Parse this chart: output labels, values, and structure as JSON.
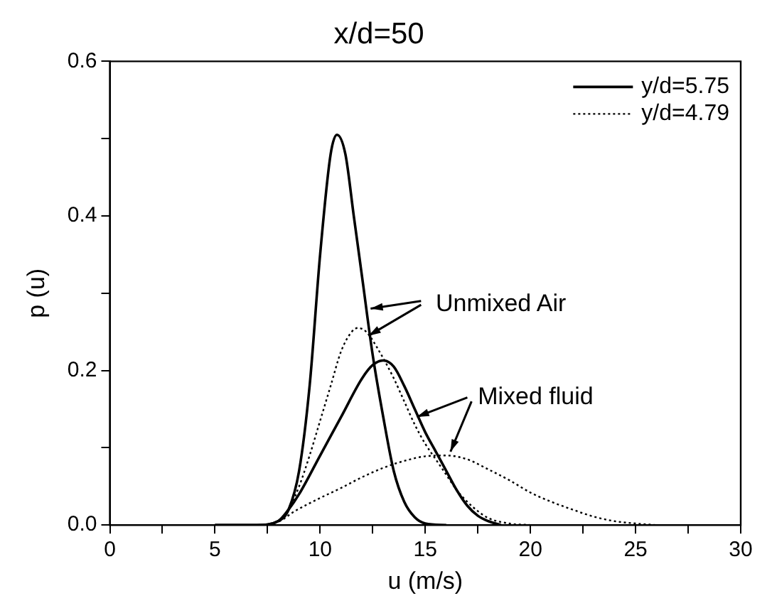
{
  "chart_data": {
    "type": "line",
    "title": "x/d=50",
    "xlabel": "u (m/s)",
    "ylabel": "p (u)",
    "xlim": [
      0,
      30
    ],
    "xticks": [
      0,
      {
        "value": 2.5,
        "label": null
      },
      5,
      {
        "value": 7.5,
        "label": null
      },
      10,
      {
        "value": 12.5,
        "label": null
      },
      15,
      {
        "value": 17.5,
        "label": null
      },
      20,
      {
        "value": 22.5,
        "label": null
      },
      25,
      {
        "value": 27.5,
        "label": null
      },
      30
    ],
    "ylim": [
      0,
      0.6
    ],
    "yticks": [
      {
        "value": 0,
        "label": "0.0"
      },
      {
        "value": 0.1,
        "label": null
      },
      {
        "value": 0.2,
        "label": "0.2"
      },
      {
        "value": 0.3,
        "label": null
      },
      {
        "value": 0.4,
        "label": "0.4"
      },
      {
        "value": 0.5,
        "label": null
      },
      {
        "value": 0.6,
        "label": "0.6"
      }
    ],
    "grid": false,
    "legend": "top right",
    "marker": "none",
    "annotations": [
      {
        "text": "Unmixed Air",
        "x": 12.4,
        "y": 0.28
      },
      {
        "text": "Mixed fluid",
        "x": 14.6,
        "y": 0.14
      }
    ],
    "series": [
      {
        "name": "y/d=5.75",
        "color": "#000000",
        "line_style": "solid",
        "x": [
          5,
          7,
          8,
          8.5,
          9,
          9.5,
          10,
          10.5,
          10.8,
          11.2,
          11.6,
          12,
          12.5,
          13,
          13.5,
          14,
          14.5,
          15,
          16
        ],
        "values": [
          0,
          0,
          0.005,
          0.02,
          0.07,
          0.18,
          0.35,
          0.48,
          0.505,
          0.48,
          0.4,
          0.32,
          0.22,
          0.14,
          0.07,
          0.03,
          0.01,
          0.002,
          0
        ]
      },
      {
        "color": "#000000",
        "line_style": "solid",
        "x": [
          5,
          7,
          8,
          8.5,
          9,
          10,
          11,
          12,
          12.5,
          13,
          13.5,
          14,
          14.5,
          15,
          15.5,
          16,
          16.5,
          17,
          17.5,
          18,
          18.6
        ],
        "values": [
          0,
          0,
          0.005,
          0.02,
          0.04,
          0.09,
          0.14,
          0.19,
          0.207,
          0.213,
          0.205,
          0.18,
          0.15,
          0.12,
          0.095,
          0.07,
          0.045,
          0.025,
          0.012,
          0.005,
          0
        ]
      },
      {
        "name": "y/d=4.79",
        "color": "#000000",
        "line_style": "dotted",
        "x": [
          5,
          7,
          8,
          8.5,
          9,
          9.5,
          10,
          10.5,
          11,
          11.5,
          11.8,
          12.2,
          12.7,
          13.5,
          14,
          14.5,
          15,
          15.5,
          16,
          16.5,
          17,
          17.5,
          18,
          19,
          20
        ],
        "values": [
          0,
          0,
          0.005,
          0.02,
          0.05,
          0.09,
          0.135,
          0.18,
          0.225,
          0.25,
          0.255,
          0.25,
          0.23,
          0.19,
          0.16,
          0.13,
          0.105,
          0.085,
          0.065,
          0.045,
          0.03,
          0.018,
          0.009,
          0.002,
          0
        ]
      },
      {
        "color": "#000000",
        "line_style": "dotted",
        "x": [
          5,
          7,
          8,
          8.8,
          10,
          11,
          12,
          13,
          14,
          15,
          16,
          17,
          18,
          19,
          20,
          21,
          22,
          23,
          24,
          25,
          26
        ],
        "values": [
          0,
          0,
          0.004,
          0.018,
          0.035,
          0.048,
          0.062,
          0.074,
          0.083,
          0.089,
          0.09,
          0.085,
          0.072,
          0.058,
          0.042,
          0.03,
          0.02,
          0.011,
          0.005,
          0.002,
          0
        ]
      }
    ]
  }
}
